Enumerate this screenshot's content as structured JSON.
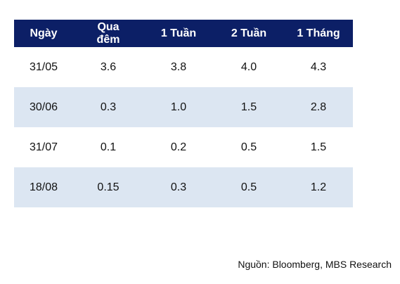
{
  "table": {
    "headers": [
      "Ngày",
      "Qua đêm",
      "1 Tuần",
      "2 Tuần",
      "1 Tháng"
    ],
    "rows": [
      [
        "31/05",
        "3.6",
        "3.8",
        "4.0",
        "4.3"
      ],
      [
        "30/06",
        "0.3",
        "1.0",
        "1.5",
        "2.8"
      ],
      [
        "31/07",
        "0.1",
        "0.2",
        "0.5",
        "1.5"
      ],
      [
        "18/08",
        "0.15",
        "0.3",
        "0.5",
        "1.2"
      ]
    ],
    "header_bg": "#0c1f66",
    "shaded_row_bg": "#dce6f2"
  },
  "source": "Nguồn: Bloomberg, MBS Research"
}
